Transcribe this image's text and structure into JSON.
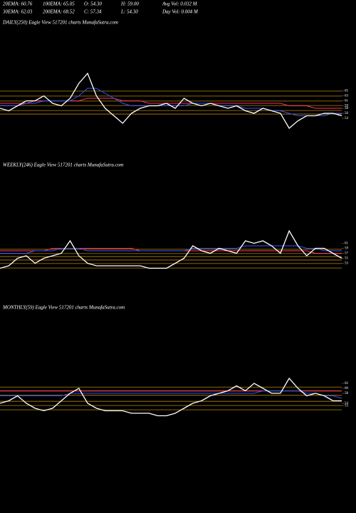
{
  "header": {
    "stats": [
      [
        "20EMA: 60.76",
        "100EMA: 65.05",
        "O: 54.30",
        "H: 59.00",
        "Avg Vol: 0.032 M"
      ],
      [
        "30EMA: 62.03",
        "200EMA: 68.52",
        "C: 57.34",
        "L: 54.30",
        "Day Vol: 0.004 M"
      ]
    ]
  },
  "chart_data": [
    {
      "type": "line",
      "title": "DAILY(250) Eagle  View  517201 charts MunafaSutra.com",
      "ylim": [
        40,
        90
      ],
      "yticks": [
        65,
        63,
        61,
        59,
        58,
        56,
        54
      ],
      "levels": {
        "color": "#b8860b",
        "values": [
          64.9,
          62.9,
          60.9,
          59.1,
          57.1,
          55.7
        ]
      },
      "series": [
        {
          "color": "#ff3366",
          "values": [
            60,
            60,
            60,
            60,
            61,
            61,
            61,
            61,
            61,
            61,
            62,
            62,
            62,
            62,
            61,
            61,
            61,
            60,
            60,
            60,
            60,
            60,
            60,
            60,
            60,
            60,
            60,
            60,
            60,
            60,
            60,
            60,
            60,
            59,
            59,
            59,
            58,
            58,
            58,
            58
          ]
        },
        {
          "color": "#3355ff",
          "values": [
            59,
            59,
            59,
            60,
            60,
            61,
            61,
            61,
            61,
            63,
            66,
            66,
            64,
            62,
            60,
            59,
            59,
            59,
            59,
            59,
            59,
            59,
            60,
            60,
            60,
            59,
            59,
            59,
            58,
            58,
            58,
            57,
            57,
            56,
            55,
            55,
            55,
            55,
            56,
            56
          ]
        },
        {
          "color": "#ffffff",
          "values": [
            58,
            57,
            59,
            61,
            61,
            63,
            60,
            59,
            62,
            68,
            72,
            63,
            58,
            55,
            52,
            56,
            58,
            59,
            59,
            60,
            58,
            62,
            60,
            59,
            60,
            59,
            58,
            59,
            57,
            56,
            58,
            57,
            56,
            50,
            53,
            55,
            55,
            56,
            56,
            55
          ]
        }
      ]
    },
    {
      "type": "line",
      "title": "WEEKLY(246) Eagle  View  517201 charts MunafaSutra.com",
      "ylim": [
        40,
        90
      ],
      "yticks": [
        61,
        59,
        57,
        55,
        53
      ],
      "levels": {
        "color": "#b8860b",
        "values": [
          58.6,
          56.9,
          55.7,
          54.3,
          52.9,
          51.1
        ]
      },
      "series": [
        {
          "color": "#ff3366",
          "values": [
            58,
            58,
            58,
            58,
            58,
            58,
            59,
            59,
            59,
            59,
            59,
            59,
            59,
            59,
            59,
            59,
            58,
            58,
            58,
            58,
            58,
            58,
            58,
            58,
            58,
            58,
            58,
            58,
            58,
            58,
            58,
            58,
            58,
            58,
            58,
            58,
            57,
            57,
            57,
            57
          ]
        },
        {
          "color": "#3355ff",
          "values": [
            57,
            57,
            57,
            57,
            58,
            58,
            58,
            59,
            59,
            59,
            58,
            58,
            58,
            58,
            58,
            58,
            58,
            58,
            58,
            58,
            58,
            58,
            59,
            59,
            59,
            59,
            59,
            59,
            60,
            60,
            60,
            60,
            60,
            60,
            60,
            59,
            59,
            58,
            58,
            58
          ]
        },
        {
          "color": "#ffffff",
          "values": [
            51,
            52,
            55,
            56,
            53,
            55,
            56,
            57,
            62,
            56,
            53,
            52,
            52,
            52,
            52,
            52,
            52,
            51,
            51,
            51,
            53,
            55,
            60,
            58,
            57,
            59,
            58,
            57,
            62,
            61,
            62,
            60,
            57,
            66,
            60,
            56,
            59,
            59,
            57,
            55
          ]
        }
      ]
    },
    {
      "type": "line",
      "title": "MONTHLY(59) Eagle  View  517201 charts MunafaSutra.com",
      "ylim": [
        40,
        90
      ],
      "yticks": [
        62,
        60,
        58,
        54,
        53
      ],
      "levels": {
        "color": "#b8860b",
        "values": [
          60.5,
          58.9,
          57.2,
          54.8,
          53.1,
          51.4
        ]
      },
      "series": [
        {
          "color": "#ff3366",
          "values": [
            59,
            59,
            59,
            59,
            59,
            59,
            59,
            59,
            59,
            59,
            59,
            59,
            59,
            59,
            59,
            59,
            59,
            59,
            59,
            59,
            59,
            59,
            59,
            59,
            59,
            59,
            59,
            59,
            59,
            59,
            59,
            59,
            59,
            59,
            59,
            59,
            59,
            59,
            59,
            59
          ]
        },
        {
          "color": "#3355ff",
          "values": [
            57,
            57,
            57,
            57,
            57,
            57,
            57,
            57,
            58,
            58,
            58,
            58,
            58,
            58,
            58,
            58,
            58,
            58,
            58,
            58,
            58,
            58,
            58,
            58,
            58,
            58,
            58,
            58,
            58,
            58,
            59,
            59,
            59,
            59,
            59,
            58,
            58,
            57,
            57,
            56
          ]
        },
        {
          "color": "#ffffff",
          "values": [
            54,
            55,
            57,
            54,
            52,
            51,
            52,
            55,
            58,
            60,
            54,
            52,
            51,
            51,
            51,
            50,
            50,
            50,
            49,
            49,
            50,
            52,
            54,
            55,
            57,
            58,
            59,
            61,
            59,
            62,
            60,
            58,
            58,
            64,
            60,
            57,
            58,
            57,
            55,
            55
          ]
        }
      ]
    }
  ]
}
